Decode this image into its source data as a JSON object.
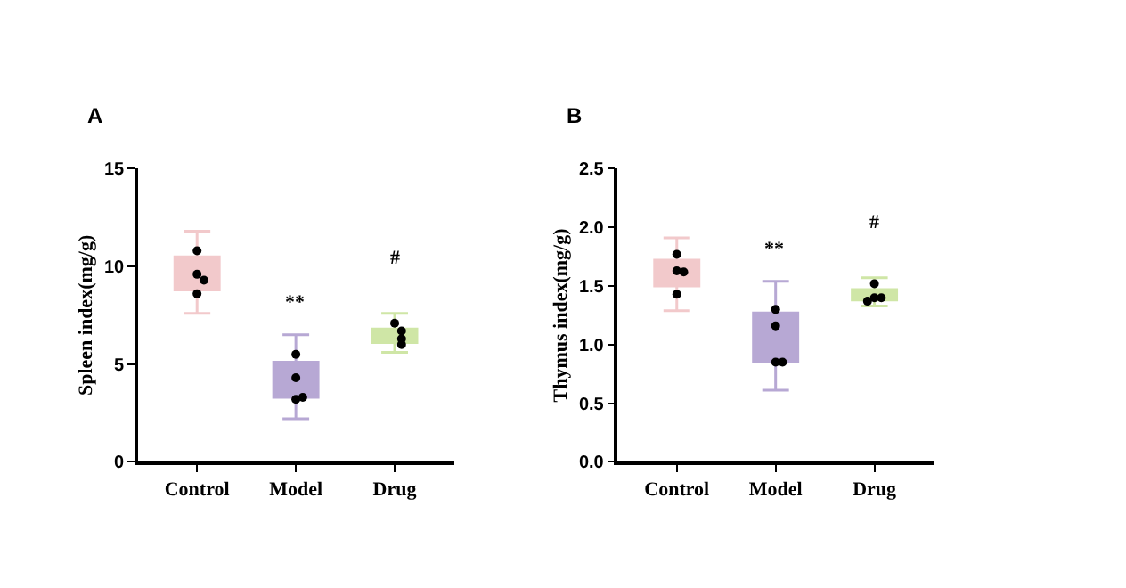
{
  "chart_data": [
    {
      "type": "box",
      "title": "A",
      "ylabel": "Spleen index(mg/g)",
      "categories": [
        "Control",
        "Model",
        "Drug"
      ],
      "ylim": [
        0,
        15
      ],
      "yticks": [
        0,
        5,
        10,
        15
      ],
      "marker": "circle",
      "series": [
        {
          "colors": [
            "#f2c9cb",
            "#b7a8d4",
            "#cfe6a6"
          ],
          "boxes": [
            {
              "low": 7.6,
              "q1": 8.8,
              "median": 9.4,
              "q3": 10.5,
              "high": 11.8
            },
            {
              "low": 2.2,
              "q1": 3.3,
              "median": 3.8,
              "q3": 5.1,
              "high": 6.5
            },
            {
              "low": 5.6,
              "q1": 6.1,
              "median": 6.4,
              "q3": 6.8,
              "high": 7.6
            }
          ]
        },
        {
          "type": "scatter",
          "color": "#000000",
          "x": [
            "Control",
            "Control",
            "Control",
            "Control",
            "Model",
            "Model",
            "Model",
            "Model",
            "Drug",
            "Drug",
            "Drug",
            "Drug"
          ],
          "values": [
            10.8,
            9.6,
            9.3,
            8.6,
            5.5,
            4.3,
            3.2,
            3.3,
            7.1,
            6.7,
            6.3,
            6.0
          ]
        }
      ],
      "annotations": [
        "**",
        "#"
      ]
    },
    {
      "type": "box",
      "title": "B",
      "ylabel": "Thymus index(mg/g)",
      "categories": [
        "Control",
        "Model",
        "Drug"
      ],
      "ylim": [
        0,
        2.5
      ],
      "yticks": [
        {
          "value": 0,
          "label": "0.0"
        },
        {
          "value": 0.5,
          "label": "0.5"
        },
        {
          "value": 1,
          "label": "1.0"
        },
        {
          "value": 1.5,
          "label": "1.5"
        },
        {
          "value": 2,
          "label": "2.0"
        },
        {
          "value": 2.5,
          "label": "2.5"
        }
      ],
      "marker": "circle",
      "series": [
        {
          "colors": [
            "#f2c9cb",
            "#b7a8d4",
            "#cfe6a6"
          ],
          "boxes": [
            {
              "low": 1.29,
              "q1": 1.5,
              "median": 1.63,
              "q3": 1.72,
              "high": 1.91
            },
            {
              "low": 0.61,
              "q1": 0.85,
              "median": 1.01,
              "q3": 1.27,
              "high": 1.54
            },
            {
              "low": 1.33,
              "q1": 1.38,
              "median": 1.4,
              "q3": 1.47,
              "high": 1.57
            }
          ]
        },
        {
          "type": "scatter",
          "color": "#000000",
          "x": [
            "Control",
            "Control",
            "Control",
            "Control",
            "Model",
            "Model",
            "Model",
            "Model",
            "Drug",
            "Drug",
            "Drug",
            "Drug"
          ],
          "values": [
            1.77,
            1.63,
            1.62,
            1.43,
            1.3,
            1.16,
            0.85,
            0.85,
            1.52,
            1.4,
            1.4,
            1.37
          ]
        }
      ],
      "annotations": [
        "**",
        "#"
      ]
    }
  ]
}
